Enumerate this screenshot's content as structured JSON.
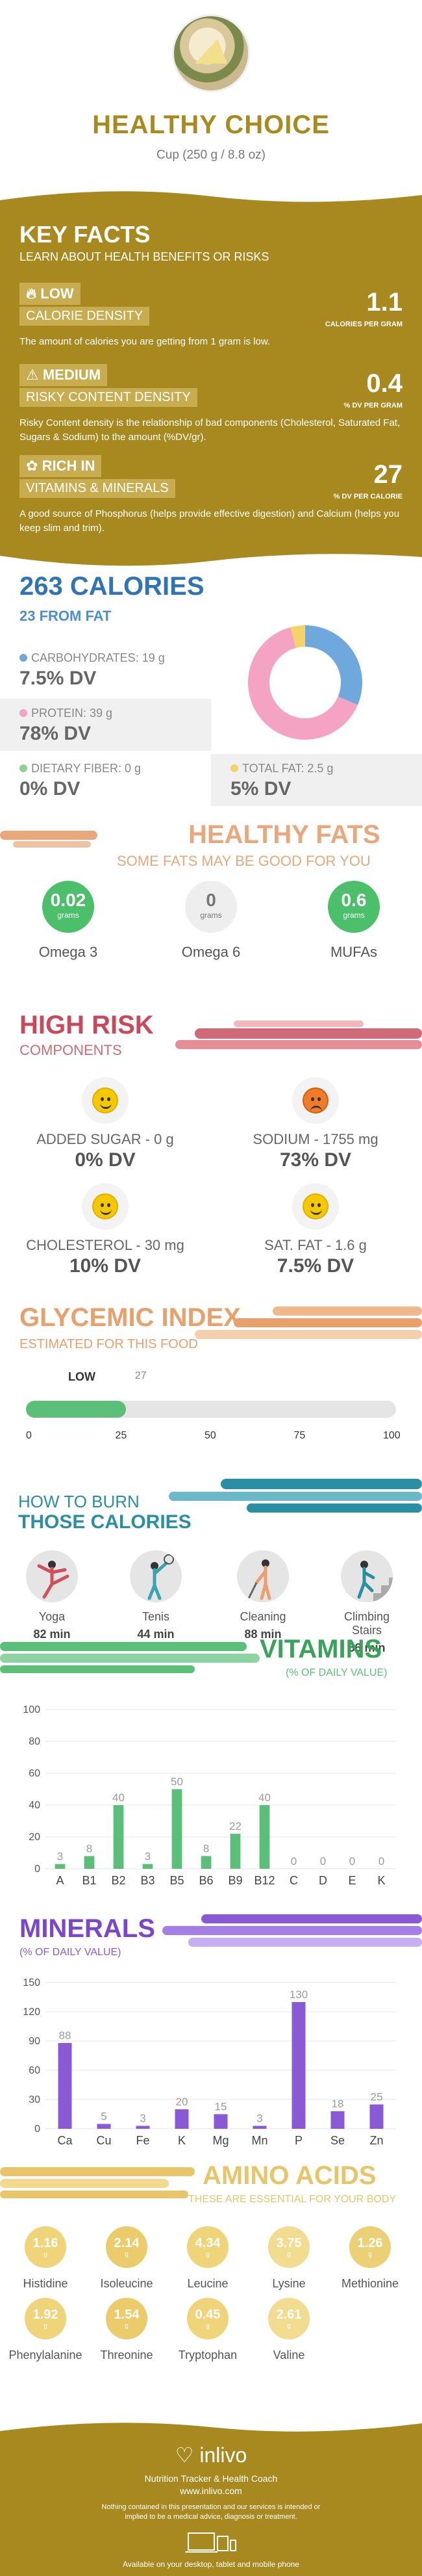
{
  "header": {
    "title": "HEALTHY CHOICE",
    "subtitle": "Cup (250 g / 8.8 oz)"
  },
  "key_facts": {
    "title": "KEY FACTS",
    "subtitle": "LEARN ABOUT HEALTH BENEFITS OR RISKS",
    "facts": [
      {
        "level": "LOW",
        "label": "CALORIE DENSITY",
        "value": "1.1",
        "unit": "CALORIES PER GRAM",
        "desc": "The amount of calories you are getting from 1 gram is low.",
        "icon": "flame-icon"
      },
      {
        "level": "MEDIUM",
        "label": "RISKY CONTENT DENSITY",
        "value": "0.4",
        "unit": "% DV PER GRAM",
        "desc": "Risky Content density is the relationship of bad components (Cholesterol, Saturated Fat, Sugars & Sodium) to the amount (%DV/gr).",
        "icon": "warning-icon"
      },
      {
        "level": "RICH  IN",
        "label": "VITAMINS & MINERALS",
        "value": "27",
        "unit": "% DV PER CALORIE",
        "desc": "A good source of Phosphorus (helps provide effective digestion) and Calcium (helps you keep slim and trim).",
        "icon": "leaf-icon"
      }
    ]
  },
  "calories": {
    "title": "263 CALORIES",
    "subtitle": "23 FROM FAT",
    "nutrients": [
      {
        "label": "CARBOHYDRATES: 19 g",
        "dv": "7.5% DV",
        "color": "#6fa8dc"
      },
      {
        "label": "PROTEIN: 39 g",
        "dv": "78% DV",
        "color": "#f4a3c3"
      },
      {
        "label": "DIETARY FIBER: 0 g",
        "dv": "0% DV",
        "color": "#8fd18f"
      },
      {
        "label": "TOTAL FAT: 2.5 g",
        "dv": "5% DV",
        "color": "#f5d36b"
      }
    ],
    "donut": [
      {
        "name": "carbs",
        "value": 19,
        "color": "#6fa8dc"
      },
      {
        "name": "protein",
        "value": 39,
        "color": "#f4a3c3"
      },
      {
        "name": "fat",
        "value": 2.5,
        "color": "#f5d36b"
      }
    ]
  },
  "healthy_fats": {
    "title": "HEALTHY FATS",
    "subtitle": "SOME FATS MAY BE GOOD FOR YOU",
    "items": [
      {
        "value": "0.02",
        "unit": "grams",
        "label": "Omega 3",
        "color": "#4cbf6b"
      },
      {
        "value": "0",
        "unit": "grams",
        "label": "Omega 6",
        "color": "#e8e8e8"
      },
      {
        "value": "0.6",
        "unit": "grams",
        "label": "MUFAs",
        "color": "#4cbf6b"
      }
    ]
  },
  "high_risk": {
    "title": "HIGH RISK",
    "subtitle": "COMPONENTS",
    "items": [
      {
        "label": "ADDED SUGAR - 0 g",
        "dv": "0% DV",
        "mood": "happy"
      },
      {
        "label": "SODIUM - 1755 mg",
        "dv": "73% DV",
        "mood": "sad"
      },
      {
        "label": "CHOLESTEROL - 30 mg",
        "dv": "10% DV",
        "mood": "happy"
      },
      {
        "label": "SAT. FAT - 1.6 g",
        "dv": "7.5% DV",
        "mood": "happy"
      }
    ]
  },
  "glycemic": {
    "title": "GLYCEMIC INDEX",
    "subtitle": "ESTIMATED FOR THIS FOOD",
    "level": "LOW",
    "value": 27,
    "value_label": "27",
    "ticks": [
      "0",
      "25",
      "50",
      "75",
      "100"
    ],
    "max": 100,
    "color": "#5bbf7a"
  },
  "burn": {
    "title1": "HOW TO BURN",
    "title2": "THOSE CALORIES",
    "items": [
      {
        "label": "Yoga",
        "time": "82 min"
      },
      {
        "label": "Tenis",
        "time": "44 min"
      },
      {
        "label": "Cleaning",
        "time": "88 min"
      },
      {
        "label": "Climbing Stairs",
        "time": "56 min"
      }
    ]
  },
  "vitamins": {
    "title": "VITAMINS",
    "subtitle": "(% OF DAILY VALUE)",
    "chart_data": {
      "type": "bar",
      "categories": [
        "A",
        "B1",
        "B2",
        "B3",
        "B5",
        "B6",
        "B9",
        "B12",
        "C",
        "D",
        "E",
        "K"
      ],
      "values": [
        3,
        8,
        40,
        3,
        50,
        8,
        22,
        40,
        0,
        0,
        0,
        0
      ],
      "ylim": [
        0,
        100
      ],
      "yticks": [
        0,
        20,
        40,
        60,
        80,
        100
      ],
      "color": "#5bbf7a"
    }
  },
  "minerals": {
    "title": "MINERALS",
    "subtitle": "(% OF DAILY VALUE)",
    "chart_data": {
      "type": "bar",
      "categories": [
        "Ca",
        "Cu",
        "Fe",
        "K",
        "Mg",
        "Mn",
        "P",
        "Se",
        "Zn"
      ],
      "values": [
        88,
        5,
        3,
        20,
        15,
        3,
        130,
        18,
        25
      ],
      "ylim": [
        0,
        150
      ],
      "yticks": [
        0,
        30,
        60,
        90,
        120,
        150
      ],
      "color": "#8a5ad6"
    }
  },
  "amino": {
    "title": "AMINO ACIDS",
    "subtitle": "THESE ARE ESSENTIAL FOR YOUR BODY",
    "unit": "g",
    "items": [
      {
        "value": "1.16",
        "label": "Histidine"
      },
      {
        "value": "2.14",
        "label": "Isoleucine"
      },
      {
        "value": "4.34",
        "label": "Leucine"
      },
      {
        "value": "3.75",
        "label": "Lysine"
      },
      {
        "value": "1.26",
        "label": "Methionine"
      },
      {
        "value": "1.92",
        "label": "Phenylalanine"
      },
      {
        "value": "1.54",
        "label": "Threonine"
      },
      {
        "value": "0.45",
        "label": "Tryptophan"
      },
      {
        "value": "2.61",
        "label": "Valine"
      }
    ]
  },
  "footer": {
    "brand": "inlivo",
    "tagline": "Nutrition Tracker & Health Coach",
    "url": "www.inlivo.com",
    "disclaimer": "Nothing contained in this presentation and our services is intended or implied to be a medical advice, diagnosis or treatment.",
    "devices": "Available on your desktop, tablet and mobile phone"
  }
}
